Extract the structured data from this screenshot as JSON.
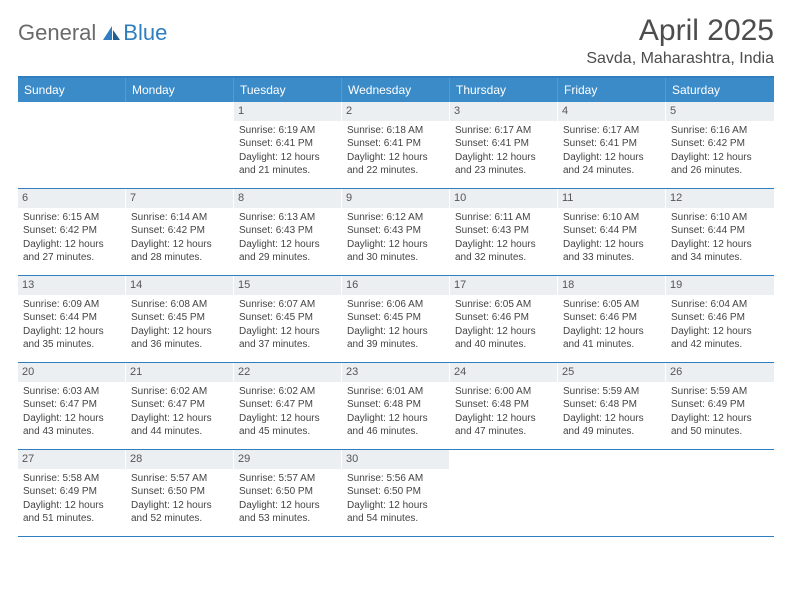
{
  "logo": {
    "general": "General",
    "blue": "Blue"
  },
  "title": "April 2025",
  "location": "Savda, Maharashtra, India",
  "colors": {
    "accent": "#3b8bc9",
    "rule": "#2f7ec0",
    "dayBg": "#eceff1"
  },
  "dayHeaders": [
    "Sunday",
    "Monday",
    "Tuesday",
    "Wednesday",
    "Thursday",
    "Friday",
    "Saturday"
  ],
  "weeks": [
    [
      {
        "blank": true
      },
      {
        "blank": true
      },
      {
        "n": "1",
        "sr": "6:19 AM",
        "ss": "6:41 PM",
        "dl": "12 hours and 21 minutes."
      },
      {
        "n": "2",
        "sr": "6:18 AM",
        "ss": "6:41 PM",
        "dl": "12 hours and 22 minutes."
      },
      {
        "n": "3",
        "sr": "6:17 AM",
        "ss": "6:41 PM",
        "dl": "12 hours and 23 minutes."
      },
      {
        "n": "4",
        "sr": "6:17 AM",
        "ss": "6:41 PM",
        "dl": "12 hours and 24 minutes."
      },
      {
        "n": "5",
        "sr": "6:16 AM",
        "ss": "6:42 PM",
        "dl": "12 hours and 26 minutes."
      }
    ],
    [
      {
        "n": "6",
        "sr": "6:15 AM",
        "ss": "6:42 PM",
        "dl": "12 hours and 27 minutes."
      },
      {
        "n": "7",
        "sr": "6:14 AM",
        "ss": "6:42 PM",
        "dl": "12 hours and 28 minutes."
      },
      {
        "n": "8",
        "sr": "6:13 AM",
        "ss": "6:43 PM",
        "dl": "12 hours and 29 minutes."
      },
      {
        "n": "9",
        "sr": "6:12 AM",
        "ss": "6:43 PM",
        "dl": "12 hours and 30 minutes."
      },
      {
        "n": "10",
        "sr": "6:11 AM",
        "ss": "6:43 PM",
        "dl": "12 hours and 32 minutes."
      },
      {
        "n": "11",
        "sr": "6:10 AM",
        "ss": "6:44 PM",
        "dl": "12 hours and 33 minutes."
      },
      {
        "n": "12",
        "sr": "6:10 AM",
        "ss": "6:44 PM",
        "dl": "12 hours and 34 minutes."
      }
    ],
    [
      {
        "n": "13",
        "sr": "6:09 AM",
        "ss": "6:44 PM",
        "dl": "12 hours and 35 minutes."
      },
      {
        "n": "14",
        "sr": "6:08 AM",
        "ss": "6:45 PM",
        "dl": "12 hours and 36 minutes."
      },
      {
        "n": "15",
        "sr": "6:07 AM",
        "ss": "6:45 PM",
        "dl": "12 hours and 37 minutes."
      },
      {
        "n": "16",
        "sr": "6:06 AM",
        "ss": "6:45 PM",
        "dl": "12 hours and 39 minutes."
      },
      {
        "n": "17",
        "sr": "6:05 AM",
        "ss": "6:46 PM",
        "dl": "12 hours and 40 minutes."
      },
      {
        "n": "18",
        "sr": "6:05 AM",
        "ss": "6:46 PM",
        "dl": "12 hours and 41 minutes."
      },
      {
        "n": "19",
        "sr": "6:04 AM",
        "ss": "6:46 PM",
        "dl": "12 hours and 42 minutes."
      }
    ],
    [
      {
        "n": "20",
        "sr": "6:03 AM",
        "ss": "6:47 PM",
        "dl": "12 hours and 43 minutes."
      },
      {
        "n": "21",
        "sr": "6:02 AM",
        "ss": "6:47 PM",
        "dl": "12 hours and 44 minutes."
      },
      {
        "n": "22",
        "sr": "6:02 AM",
        "ss": "6:47 PM",
        "dl": "12 hours and 45 minutes."
      },
      {
        "n": "23",
        "sr": "6:01 AM",
        "ss": "6:48 PM",
        "dl": "12 hours and 46 minutes."
      },
      {
        "n": "24",
        "sr": "6:00 AM",
        "ss": "6:48 PM",
        "dl": "12 hours and 47 minutes."
      },
      {
        "n": "25",
        "sr": "5:59 AM",
        "ss": "6:48 PM",
        "dl": "12 hours and 49 minutes."
      },
      {
        "n": "26",
        "sr": "5:59 AM",
        "ss": "6:49 PM",
        "dl": "12 hours and 50 minutes."
      }
    ],
    [
      {
        "n": "27",
        "sr": "5:58 AM",
        "ss": "6:49 PM",
        "dl": "12 hours and 51 minutes."
      },
      {
        "n": "28",
        "sr": "5:57 AM",
        "ss": "6:50 PM",
        "dl": "12 hours and 52 minutes."
      },
      {
        "n": "29",
        "sr": "5:57 AM",
        "ss": "6:50 PM",
        "dl": "12 hours and 53 minutes."
      },
      {
        "n": "30",
        "sr": "5:56 AM",
        "ss": "6:50 PM",
        "dl": "12 hours and 54 minutes."
      },
      {
        "blank": true
      },
      {
        "blank": true
      },
      {
        "blank": true
      }
    ]
  ],
  "labels": {
    "sunrise": "Sunrise: ",
    "sunset": "Sunset: ",
    "daylight": "Daylight: "
  }
}
